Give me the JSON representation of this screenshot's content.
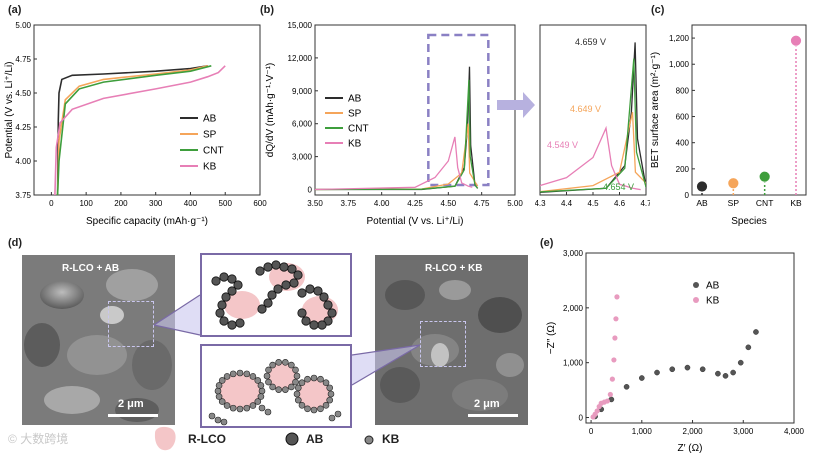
{
  "figure": {
    "panel_labels": {
      "a": "(a)",
      "b": "(b)",
      "c": "(c)",
      "d": "(d)",
      "e": "(e)"
    },
    "watermark": "大数跨境",
    "colors": {
      "AB": "#2d2d2d",
      "SP": "#f5a55a",
      "CNT": "#3e9e3c",
      "KB": "#e77fb6",
      "frame": "#7a6aa6"
    }
  },
  "chart_data": [
    {
      "id": "a",
      "type": "line",
      "xlabel": "Specific capacity (mAh·g⁻¹)",
      "ylabel": "Potential (V vs. Li⁺/Li)",
      "xlim": [
        -50,
        600
      ],
      "ylim": [
        3.75,
        5.0
      ],
      "xticks": [
        "0",
        "100",
        "200",
        "300",
        "400",
        "500",
        "600"
      ],
      "yticks": [
        "3.75",
        "4.00",
        "4.25",
        "4.50",
        "4.75",
        "5.00"
      ],
      "legend": [
        "AB",
        "SP",
        "CNT",
        "KB"
      ],
      "series": [
        {
          "name": "AB",
          "points": [
            [
              18,
              3.75
            ],
            [
              20,
              4.3
            ],
            [
              22,
              4.5
            ],
            [
              30,
              4.6
            ],
            [
              60,
              4.63
            ],
            [
              150,
              4.64
            ],
            [
              300,
              4.66
            ],
            [
              400,
              4.68
            ],
            [
              450,
              4.7
            ]
          ]
        },
        {
          "name": "SP",
          "points": [
            [
              18,
              3.75
            ],
            [
              22,
              4.15
            ],
            [
              40,
              4.45
            ],
            [
              80,
              4.55
            ],
            [
              150,
              4.6
            ],
            [
              300,
              4.64
            ],
            [
              400,
              4.67
            ],
            [
              450,
              4.7
            ]
          ]
        },
        {
          "name": "CNT",
          "points": [
            [
              18,
              3.75
            ],
            [
              22,
              4.0
            ],
            [
              40,
              4.42
            ],
            [
              80,
              4.53
            ],
            [
              150,
              4.58
            ],
            [
              300,
              4.63
            ],
            [
              400,
              4.66
            ],
            [
              460,
              4.7
            ]
          ]
        },
        {
          "name": "KB",
          "points": [
            [
              10,
              3.75
            ],
            [
              14,
              4.1
            ],
            [
              25,
              4.28
            ],
            [
              60,
              4.38
            ],
            [
              150,
              4.46
            ],
            [
              300,
              4.53
            ],
            [
              400,
              4.58
            ],
            [
              450,
              4.62
            ],
            [
              480,
              4.65
            ],
            [
              500,
              4.7
            ]
          ]
        }
      ]
    },
    {
      "id": "b",
      "type": "line",
      "xlabel": "Potential (V vs. Li⁺/Li)",
      "ylabel": "dQ/dV (mAh·g⁻¹·V⁻¹)",
      "xlim": [
        3.5,
        5.0
      ],
      "ylim": [
        -500,
        15000
      ],
      "xticks": [
        "3.50",
        "3.75",
        "4.00",
        "4.25",
        "4.50",
        "4.75",
        "5.00"
      ],
      "yticks": [
        "0",
        "3,000",
        "6,000",
        "9,000",
        "12,000",
        "15,000"
      ],
      "legend": [
        "AB",
        "SP",
        "CNT",
        "KB"
      ],
      "series": [
        {
          "name": "AB",
          "points": [
            [
              3.5,
              0
            ],
            [
              4.3,
              0
            ],
            [
              4.55,
              300
            ],
            [
              4.62,
              2000
            ],
            [
              4.645,
              6000
            ],
            [
              4.659,
              11200
            ],
            [
              4.668,
              4000
            ],
            [
              4.7,
              400
            ],
            [
              4.72,
              100
            ]
          ]
        },
        {
          "name": "SP",
          "points": [
            [
              3.5,
              0
            ],
            [
              4.3,
              50
            ],
            [
              4.5,
              500
            ],
            [
              4.6,
              1500
            ],
            [
              4.649,
              6000
            ],
            [
              4.66,
              1500
            ],
            [
              4.7,
              700
            ],
            [
              4.72,
              300
            ]
          ]
        },
        {
          "name": "CNT",
          "points": [
            [
              3.5,
              0
            ],
            [
              4.3,
              30
            ],
            [
              4.55,
              300
            ],
            [
              4.62,
              1800
            ],
            [
              4.654,
              10000
            ],
            [
              4.664,
              3000
            ],
            [
              4.7,
              400
            ],
            [
              4.72,
              100
            ]
          ]
        },
        {
          "name": "KB",
          "points": [
            [
              3.5,
              0
            ],
            [
              4.25,
              200
            ],
            [
              4.4,
              1100
            ],
            [
              4.5,
              2600
            ],
            [
              4.549,
              4800
            ],
            [
              4.57,
              2000
            ],
            [
              4.6,
              600
            ],
            [
              4.65,
              300
            ],
            [
              4.68,
              200
            ]
          ]
        }
      ]
    },
    {
      "id": "b-inset",
      "type": "line",
      "xlim": [
        4.3,
        4.7
      ],
      "xticks": [
        "4.3",
        "4.4",
        "4.5",
        "4.6",
        "4.7"
      ],
      "annotations": [
        "4.659 V",
        "4.649 V",
        "4.549 V",
        "4.654 V"
      ]
    },
    {
      "id": "c",
      "type": "scatter",
      "xlabel": "Species",
      "ylabel": "BET surface area (m²·g⁻¹)",
      "categories": [
        "AB",
        "SP",
        "CNT",
        "KB"
      ],
      "values": [
        65,
        90,
        140,
        1180
      ],
      "ylim": [
        0,
        1300
      ],
      "yticks": [
        "0",
        "200",
        "400",
        "600",
        "800",
        "1,000",
        "1,200"
      ]
    },
    {
      "id": "e",
      "type": "scatter",
      "xlabel": "Z′ (Ω)",
      "ylabel": "−Z″ (Ω)",
      "xlim": [
        -100,
        4000
      ],
      "ylim": [
        -100,
        3000
      ],
      "xticks": [
        "0",
        "1,000",
        "2,000",
        "3,000",
        "4,000"
      ],
      "yticks": [
        "0",
        "1,000",
        "2,000",
        "3,000"
      ],
      "legend": [
        "AB",
        "KB"
      ],
      "series": [
        {
          "name": "AB",
          "points": [
            [
              80,
              20
            ],
            [
              200,
              150
            ],
            [
              400,
              330
            ],
            [
              700,
              560
            ],
            [
              1000,
              720
            ],
            [
              1300,
              820
            ],
            [
              1600,
              880
            ],
            [
              1900,
              910
            ],
            [
              2200,
              880
            ],
            [
              2500,
              800
            ],
            [
              2650,
              760
            ],
            [
              2800,
              820
            ],
            [
              2950,
              1000
            ],
            [
              3100,
              1280
            ],
            [
              3250,
              1560
            ]
          ]
        },
        {
          "name": "KB",
          "points": [
            [
              40,
              10
            ],
            [
              80,
              60
            ],
            [
              120,
              120
            ],
            [
              160,
              200
            ],
            [
              200,
              260
            ],
            [
              260,
              280
            ],
            [
              320,
              300
            ],
            [
              380,
              420
            ],
            [
              420,
              700
            ],
            [
              450,
              1050
            ],
            [
              470,
              1450
            ],
            [
              490,
              1800
            ],
            [
              510,
              2200
            ]
          ]
        }
      ]
    }
  ],
  "panel_d": {
    "left_label": "R-LCO + AB",
    "right_label": "R-LCO + KB",
    "scale": "2 μm",
    "legend": {
      "rlco": "R-LCO",
      "ab": "AB",
      "kb": "KB"
    }
  }
}
